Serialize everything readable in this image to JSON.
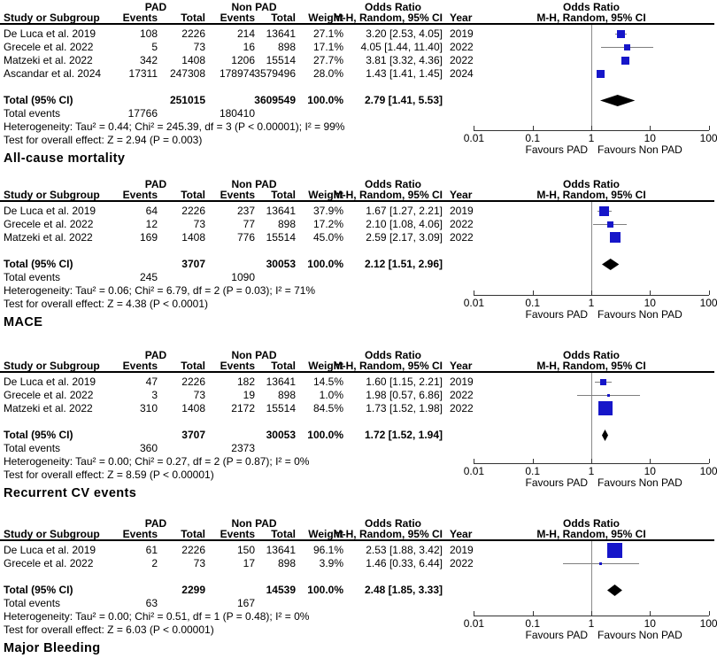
{
  "colors": {
    "marker_blue": "#1616c9",
    "diamond_black": "#000000",
    "ci_gray": "#7f7f7f",
    "null_line_gray": "#8a8a8a",
    "axis_dark": "#333333"
  },
  "headers": {
    "group_pad": "PAD",
    "group_nonpad": "Non PAD",
    "group_or": "Odds Ratio",
    "study": "Study or Subgroup",
    "events": "Events",
    "total": "Total",
    "weight": "Weight",
    "or_ci": "M-H, Random, 95% CI",
    "year": "Year"
  },
  "chart_data": [
    {
      "type": "scatter",
      "subtype": "forest-plot",
      "outcome_label": "All-cause mortality",
      "effect_measure": "Odds Ratio, M-H, Random, 95% CI",
      "x_scale": "log",
      "x_range": [
        0.01,
        100
      ],
      "x_ticks": [
        0.01,
        0.1,
        1,
        10,
        100
      ],
      "favours": [
        "Favours PAD",
        "Favours Non PAD"
      ],
      "studies": [
        {
          "name": "De Luca et al. 2019",
          "pad_events": 108,
          "pad_total": 2226,
          "non_events": 214,
          "non_total": 13641,
          "weight": "27.1%",
          "weight_pct": 27.1,
          "or_text": "3.20 [2.53, 4.05]",
          "or": 3.2,
          "ci_low": 2.53,
          "ci_high": 4.05,
          "year": 2019
        },
        {
          "name": "Grecele et al. 2022",
          "pad_events": 5,
          "pad_total": 73,
          "non_events": 16,
          "non_total": 898,
          "weight": "17.1%",
          "weight_pct": 17.1,
          "or_text": "4.05 [1.44, 11.40]",
          "or": 4.05,
          "ci_low": 1.44,
          "ci_high": 11.4,
          "year": 2022
        },
        {
          "name": "Matzeki et al. 2022",
          "pad_events": 342,
          "pad_total": 1408,
          "non_events": 1206,
          "non_total": 15514,
          "weight": "27.7%",
          "weight_pct": 27.7,
          "or_text": "3.81 [3.32, 4.36]",
          "or": 3.81,
          "ci_low": 3.32,
          "ci_high": 4.36,
          "year": 2022
        },
        {
          "name": "Ascandar et al. 2024",
          "pad_events": 17311,
          "pad_total": 247308,
          "non_events": 178974,
          "non_total": 3579496,
          "weight": "28.0%",
          "weight_pct": 28.0,
          "or_text": "1.43 [1.41, 1.45]",
          "or": 1.43,
          "ci_low": 1.41,
          "ci_high": 1.45,
          "year": 2024
        }
      ],
      "total": {
        "label": "Total (95% CI)",
        "pad_total": 251015,
        "non_total": 3609549,
        "weight": "100.0%",
        "or_text": "2.79 [1.41, 5.53]",
        "or": 2.79,
        "ci_low": 1.41,
        "ci_high": 5.53
      },
      "total_events": {
        "label": "Total events",
        "pad": 17766,
        "non": 180410
      },
      "heterogeneity": "Heterogeneity: Tau² = 0.44; Chi² = 245.39, df = 3 (P < 0.00001); I² = 99%",
      "overall_effect": "Test for overall effect: Z = 2.94 (P = 0.003)"
    },
    {
      "type": "scatter",
      "subtype": "forest-plot",
      "outcome_label": "MACE",
      "effect_measure": "Odds Ratio, M-H, Random, 95% CI",
      "x_scale": "log",
      "x_range": [
        0.01,
        100
      ],
      "x_ticks": [
        0.01,
        0.1,
        1,
        10,
        100
      ],
      "favours": [
        "Favours PAD",
        "Favours Non PAD"
      ],
      "studies": [
        {
          "name": "De Luca et al. 2019",
          "pad_events": 64,
          "pad_total": 2226,
          "non_events": 237,
          "non_total": 13641,
          "weight": "37.9%",
          "weight_pct": 37.9,
          "or_text": "1.67 [1.27, 2.21]",
          "or": 1.67,
          "ci_low": 1.27,
          "ci_high": 2.21,
          "year": 2019
        },
        {
          "name": "Grecele et al. 2022",
          "pad_events": 12,
          "pad_total": 73,
          "non_events": 77,
          "non_total": 898,
          "weight": "17.2%",
          "weight_pct": 17.2,
          "or_text": "2.10 [1.08, 4.06]",
          "or": 2.1,
          "ci_low": 1.08,
          "ci_high": 4.06,
          "year": 2022
        },
        {
          "name": "Matzeki et al. 2022",
          "pad_events": 169,
          "pad_total": 1408,
          "non_events": 776,
          "non_total": 15514,
          "weight": "45.0%",
          "weight_pct": 45.0,
          "or_text": "2.59 [2.17, 3.09]",
          "or": 2.59,
          "ci_low": 2.17,
          "ci_high": 3.09,
          "year": 2022
        }
      ],
      "total": {
        "label": "Total (95% CI)",
        "pad_total": 3707,
        "non_total": 30053,
        "weight": "100.0%",
        "or_text": "2.12 [1.51, 2.96]",
        "or": 2.12,
        "ci_low": 1.51,
        "ci_high": 2.96
      },
      "total_events": {
        "label": "Total events",
        "pad": 245,
        "non": 1090
      },
      "heterogeneity": "Heterogeneity: Tau² = 0.06; Chi² = 6.79, df = 2 (P = 0.03); I² = 71%",
      "overall_effect": "Test for overall effect: Z = 4.38 (P < 0.0001)"
    },
    {
      "type": "scatter",
      "subtype": "forest-plot",
      "outcome_label": "Recurrent CV events",
      "effect_measure": "Odds Ratio, M-H, Random, 95% CI",
      "x_scale": "log",
      "x_range": [
        0.01,
        100
      ],
      "x_ticks": [
        0.01,
        0.1,
        1,
        10,
        100
      ],
      "favours": [
        "Favours PAD",
        "Favours Non PAD"
      ],
      "studies": [
        {
          "name": "De Luca et al. 2019",
          "pad_events": 47,
          "pad_total": 2226,
          "non_events": 182,
          "non_total": 13641,
          "weight": "14.5%",
          "weight_pct": 14.5,
          "or_text": "1.60 [1.15, 2.21]",
          "or": 1.6,
          "ci_low": 1.15,
          "ci_high": 2.21,
          "year": 2019
        },
        {
          "name": "Grecele et al. 2022",
          "pad_events": 3,
          "pad_total": 73,
          "non_events": 19,
          "non_total": 898,
          "weight": "1.0%",
          "weight_pct": 1.0,
          "or_text": "1.98 [0.57, 6.86]",
          "or": 1.98,
          "ci_low": 0.57,
          "ci_high": 6.86,
          "year": 2022
        },
        {
          "name": "Matzeki et al. 2022",
          "pad_events": 310,
          "pad_total": 1408,
          "non_events": 2172,
          "non_total": 15514,
          "weight": "84.5%",
          "weight_pct": 84.5,
          "or_text": "1.73 [1.52, 1.98]",
          "or": 1.73,
          "ci_low": 1.52,
          "ci_high": 1.98,
          "year": 2022
        }
      ],
      "total": {
        "label": "Total (95% CI)",
        "pad_total": 3707,
        "non_total": 30053,
        "weight": "100.0%",
        "or_text": "1.72 [1.52, 1.94]",
        "or": 1.72,
        "ci_low": 1.52,
        "ci_high": 1.94
      },
      "total_events": {
        "label": "Total events",
        "pad": 360,
        "non": 2373
      },
      "heterogeneity": "Heterogeneity: Tau² = 0.00; Chi² = 0.27, df = 2 (P = 0.87); I² = 0%",
      "overall_effect": "Test for overall effect: Z = 8.59 (P < 0.00001)"
    },
    {
      "type": "scatter",
      "subtype": "forest-plot",
      "outcome_label": "Major Bleeding",
      "effect_measure": "Odds Ratio, M-H, Random, 95% CI",
      "x_scale": "log",
      "x_range": [
        0.01,
        100
      ],
      "x_ticks": [
        0.01,
        0.1,
        1,
        10,
        100
      ],
      "favours": [
        "Favours PAD",
        "Favours Non PAD"
      ],
      "studies": [
        {
          "name": "De Luca et al. 2019",
          "pad_events": 61,
          "pad_total": 2226,
          "non_events": 150,
          "non_total": 13641,
          "weight": "96.1%",
          "weight_pct": 96.1,
          "or_text": "2.53 [1.88, 3.42]",
          "or": 2.53,
          "ci_low": 1.88,
          "ci_high": 3.42,
          "year": 2019
        },
        {
          "name": "Grecele et al. 2022",
          "pad_events": 2,
          "pad_total": 73,
          "non_events": 17,
          "non_total": 898,
          "weight": "3.9%",
          "weight_pct": 3.9,
          "or_text": "1.46 [0.33, 6.44]",
          "or": 1.46,
          "ci_low": 0.33,
          "ci_high": 6.44,
          "year": 2022
        }
      ],
      "total": {
        "label": "Total (95% CI)",
        "pad_total": 2299,
        "non_total": 14539,
        "weight": "100.0%",
        "or_text": "2.48 [1.85, 3.33]",
        "or": 2.48,
        "ci_low": 1.85,
        "ci_high": 3.33
      },
      "total_events": {
        "label": "Total events",
        "pad": 63,
        "non": 167
      },
      "heterogeneity": "Heterogeneity: Tau² = 0.00; Chi² = 0.51, df = 1 (P = 0.48); I² = 0%",
      "overall_effect": "Test for overall effect: Z = 6.03 (P < 0.00001)"
    }
  ]
}
